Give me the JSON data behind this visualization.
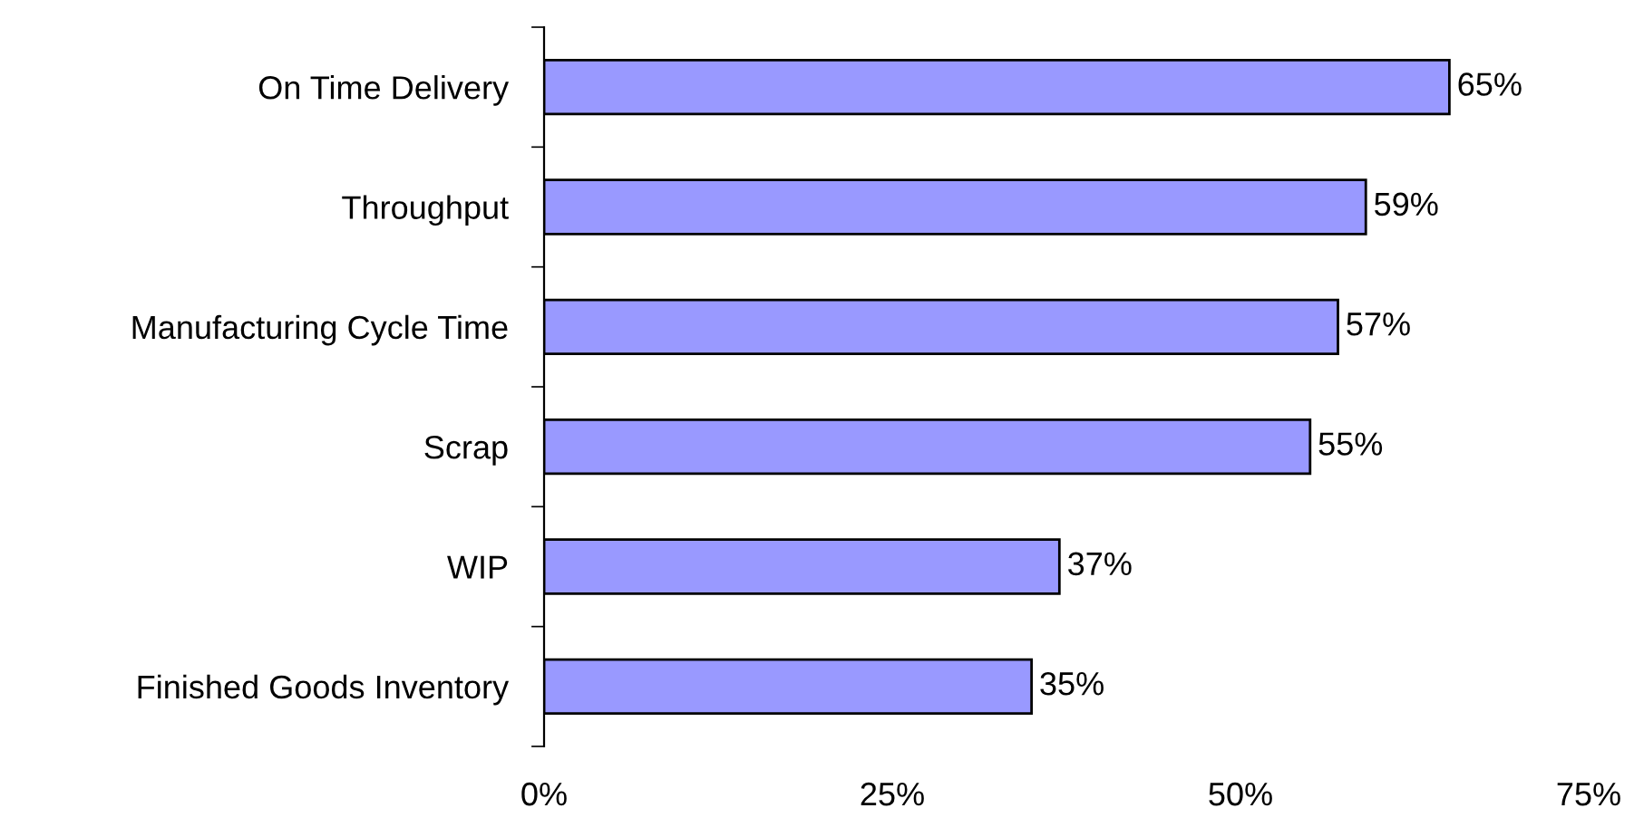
{
  "chart_data": {
    "type": "bar",
    "orientation": "horizontal",
    "categories": [
      "On Time Delivery",
      "Throughput",
      "Manufacturing Cycle Time",
      "Scrap",
      "WIP",
      "Finished Goods Inventory"
    ],
    "values": [
      65,
      59,
      57,
      55,
      37,
      35
    ],
    "value_labels": [
      "65%",
      "59%",
      "57%",
      "55%",
      "37%",
      "35%"
    ],
    "color": "#9999ff",
    "xlim": [
      0,
      75
    ],
    "xticks": [
      {
        "value": 0,
        "label": "0%"
      },
      {
        "value": 25,
        "label": "25%"
      },
      {
        "value": 50,
        "label": "50%"
      },
      {
        "value": 75,
        "label": "75%"
      }
    ],
    "grid": false,
    "legend": false
  }
}
